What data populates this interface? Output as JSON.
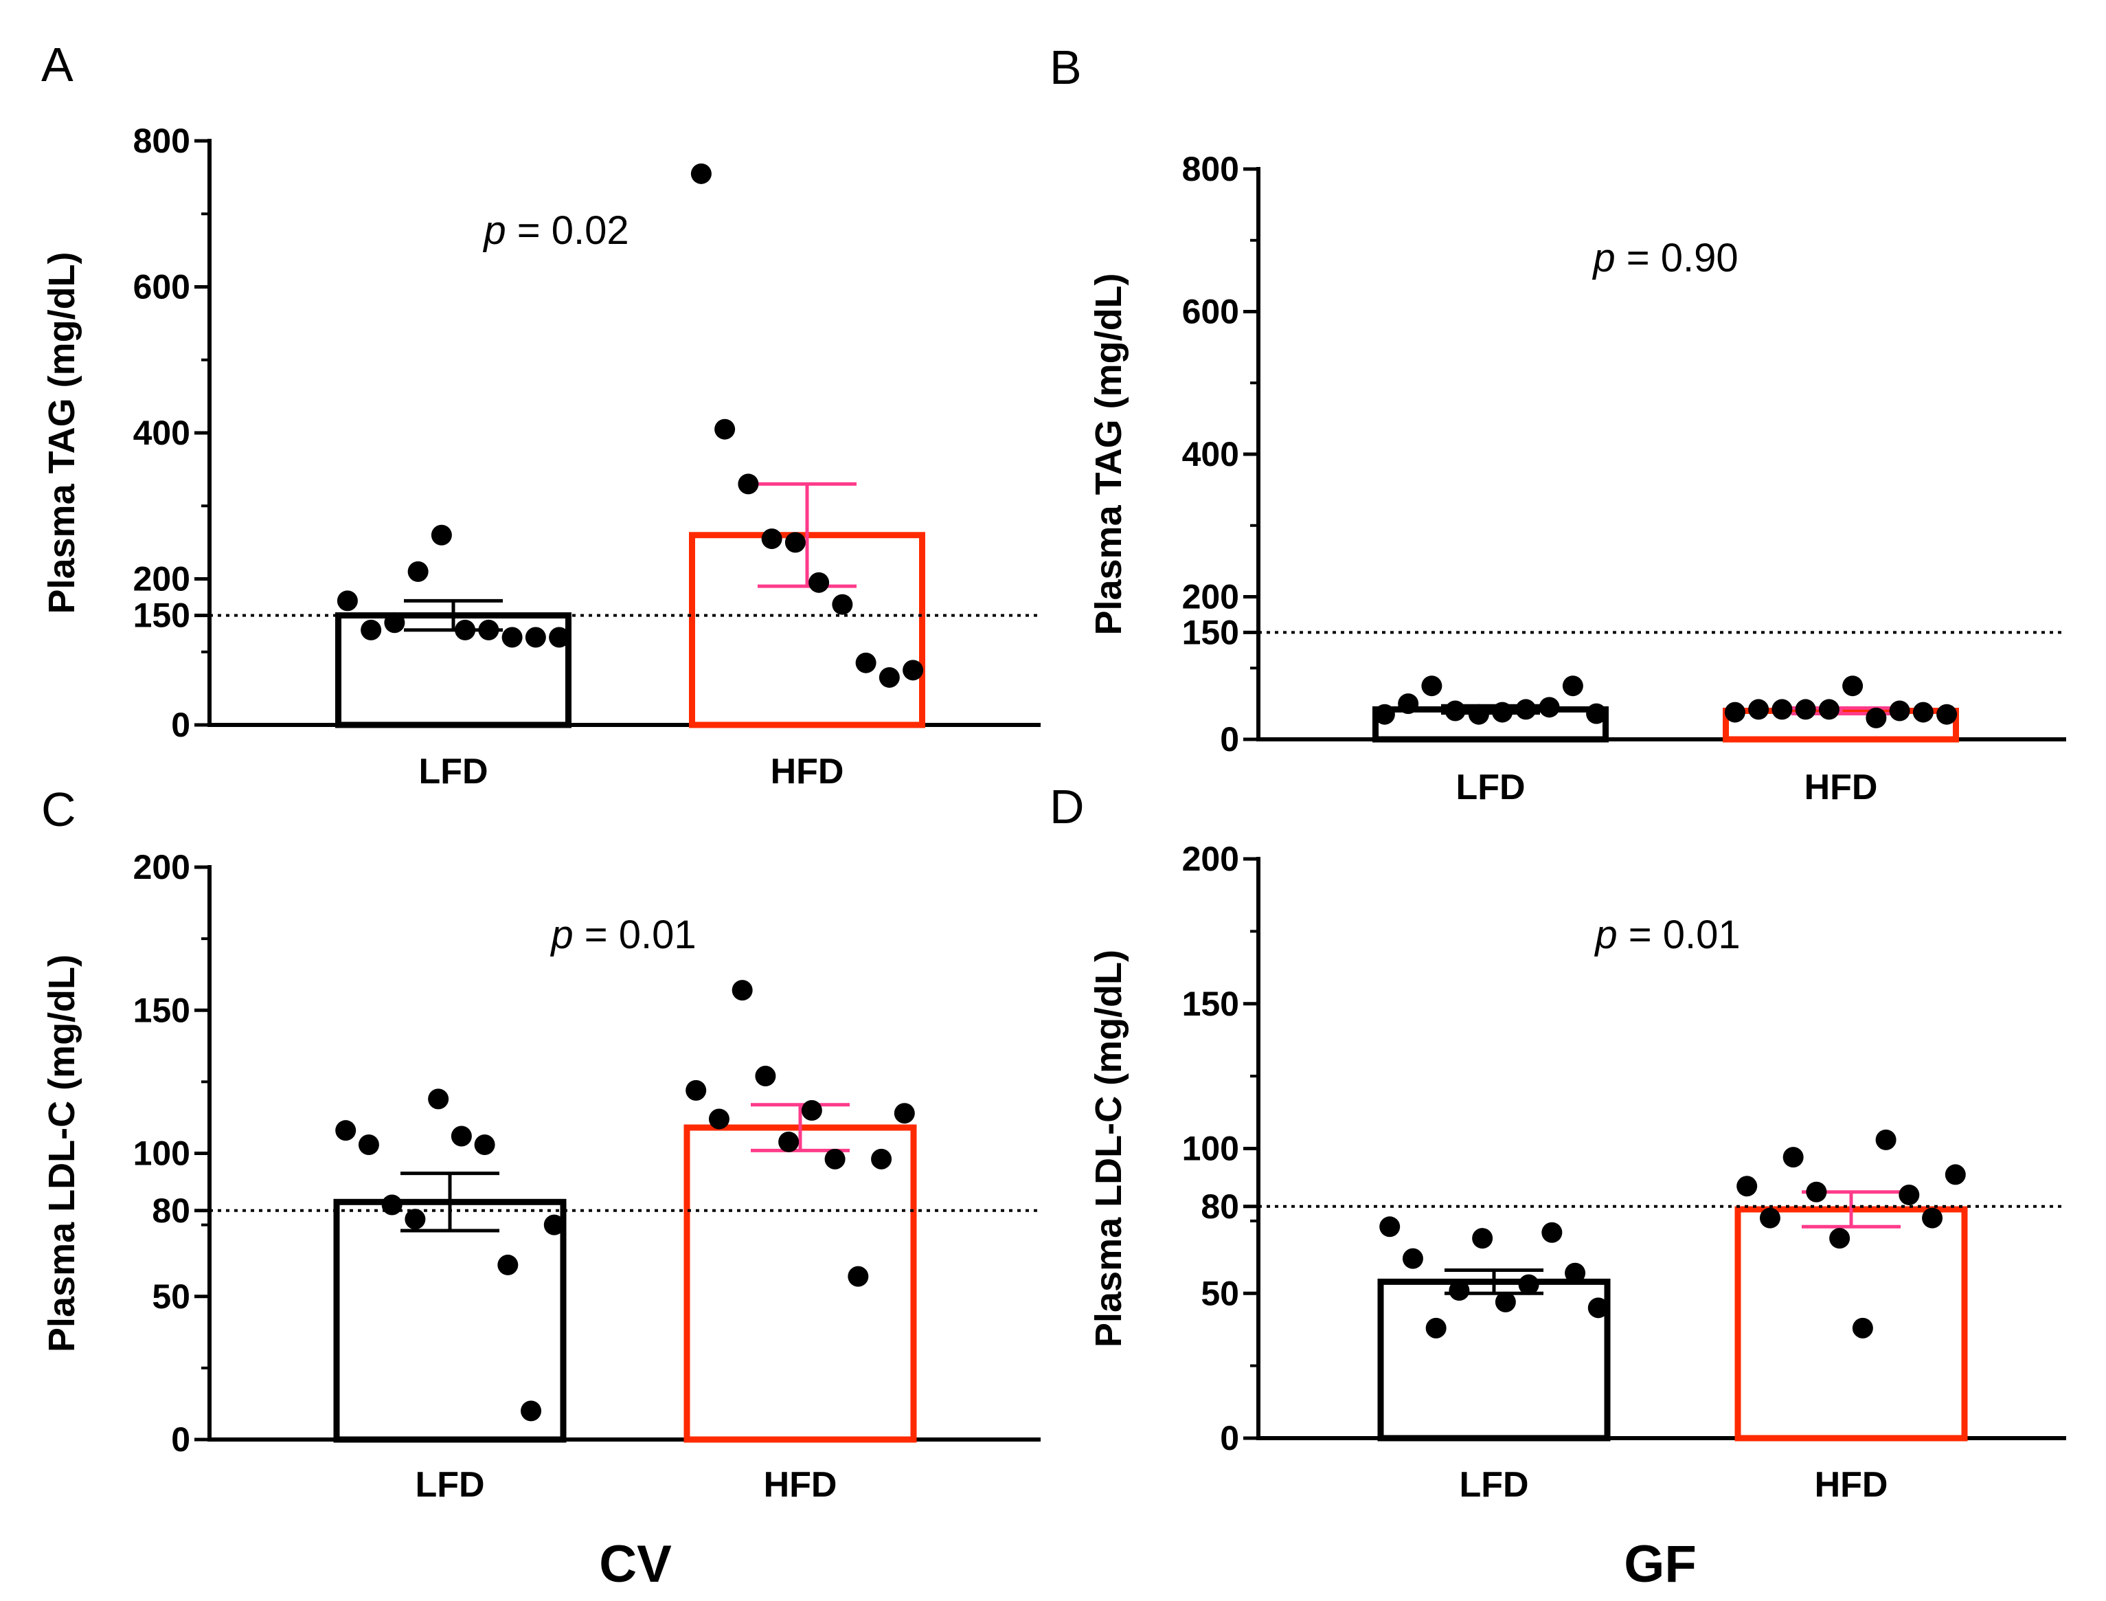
{
  "chart_data": [
    {
      "id": "A",
      "panel_label": "A",
      "type": "bar",
      "ylabel": "Plasma TAG (mg/dL)",
      "ylim": [
        0,
        800
      ],
      "yticks": [
        0,
        150,
        200,
        400,
        600,
        800
      ],
      "minor_step": 100,
      "threshold": 150,
      "p_prefix": "p",
      "p_suffix": " = 0.02",
      "categories": [
        "LFD",
        "HFD"
      ],
      "bars": [
        {
          "label": "LFD",
          "mean": 150,
          "sem": 20,
          "bar_color": "#000000",
          "error_color": "#000000",
          "points": [
            170,
            130,
            140,
            210,
            260,
            130,
            130,
            120,
            120,
            120
          ]
        },
        {
          "label": "HFD",
          "mean": 260,
          "sem": 70,
          "bar_color": "#ff2a00",
          "error_color": "#ff3b8a",
          "points": [
            755,
            405,
            330,
            255,
            250,
            195,
            165,
            85,
            65,
            75
          ]
        }
      ]
    },
    {
      "id": "B",
      "panel_label": "B",
      "type": "bar",
      "ylabel": "Plasma TAG (mg/dL)",
      "ylim": [
        0,
        800
      ],
      "yticks": [
        0,
        150,
        200,
        400,
        600,
        800
      ],
      "minor_step": 100,
      "threshold": 150,
      "p_prefix": "p",
      "p_suffix": " = 0.90",
      "categories": [
        "LFD",
        "HFD"
      ],
      "bars": [
        {
          "label": "LFD",
          "mean": 42,
          "sem": 5,
          "bar_color": "#000000",
          "error_color": "#000000",
          "points": [
            35,
            50,
            75,
            40,
            35,
            38,
            42,
            45,
            75,
            36
          ]
        },
        {
          "label": "HFD",
          "mean": 40,
          "sem": 4,
          "bar_color": "#ff2a00",
          "error_color": "#ff3b8a",
          "points": [
            38,
            42,
            42,
            42,
            42,
            75,
            30,
            40,
            38,
            35
          ]
        }
      ]
    },
    {
      "id": "C",
      "panel_label": "C",
      "type": "bar",
      "ylabel": "Plasma LDL-C (mg/dL)",
      "ylim": [
        0,
        200
      ],
      "yticks": [
        0,
        50,
        80,
        100,
        150,
        200
      ],
      "minor_step": 25,
      "threshold": 80,
      "p_prefix": "p",
      "p_suffix": " = 0.01",
      "categories": [
        "LFD",
        "HFD"
      ],
      "bars": [
        {
          "label": "LFD",
          "mean": 83,
          "sem": 10,
          "bar_color": "#000000",
          "error_color": "#000000",
          "points": [
            108,
            103,
            82,
            77,
            119,
            106,
            103,
            61,
            10,
            75
          ]
        },
        {
          "label": "HFD",
          "mean": 109,
          "sem": 8,
          "bar_color": "#ff2a00",
          "error_color": "#ff3b8a",
          "points": [
            122,
            112,
            157,
            127,
            104,
            115,
            98,
            57,
            98,
            114
          ]
        }
      ]
    },
    {
      "id": "D",
      "panel_label": "D",
      "type": "bar",
      "ylabel": "Plasma LDL-C (mg/dL)",
      "ylim": [
        0,
        200
      ],
      "yticks": [
        0,
        50,
        80,
        100,
        150,
        200
      ],
      "minor_step": 25,
      "threshold": 80,
      "p_prefix": "p",
      "p_suffix": " = 0.01",
      "categories": [
        "LFD",
        "HFD"
      ],
      "bars": [
        {
          "label": "LFD",
          "mean": 54,
          "sem": 4,
          "bar_color": "#000000",
          "error_color": "#000000",
          "points": [
            73,
            62,
            38,
            51,
            69,
            47,
            53,
            71,
            57,
            45
          ]
        },
        {
          "label": "HFD",
          "mean": 79,
          "sem": 6,
          "bar_color": "#ff2a00",
          "error_color": "#ff3b8a",
          "points": [
            87,
            76,
            97,
            85,
            69,
            38,
            103,
            84,
            76,
            91
          ]
        }
      ]
    }
  ],
  "group_labels": {
    "cv": "CV",
    "gf": "GF"
  }
}
